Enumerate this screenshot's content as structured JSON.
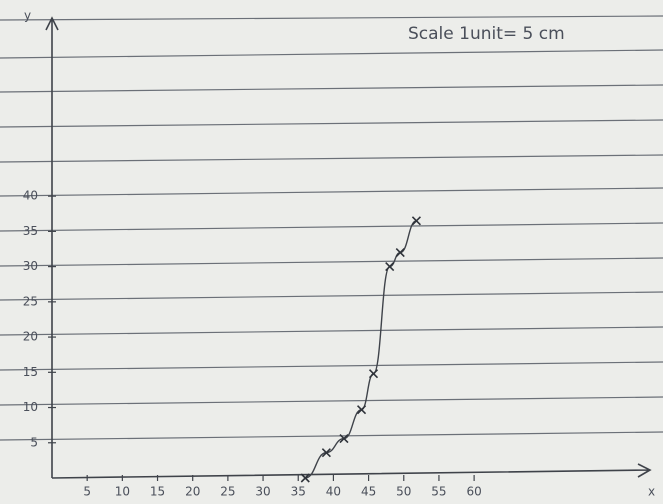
{
  "chart_data": {
    "type": "line",
    "annotation": "Scale 1unit= 5 cm",
    "x_label": "x",
    "y_label": "y",
    "x": [
      36,
      39,
      41.5,
      44,
      45.7,
      48,
      49.5,
      51.8
    ],
    "values": [
      0,
      3.6,
      5.6,
      9.7,
      14.8,
      30,
      32,
      36.5
    ],
    "color": "#3f434a",
    "xlim": [
      0,
      85
    ],
    "ylim": [
      0,
      65
    ],
    "xticks": [
      5,
      10,
      15,
      20,
      25,
      30,
      35,
      40,
      45,
      50,
      55,
      60
    ],
    "yticks": [
      5,
      10,
      15,
      20,
      25,
      30,
      35,
      40
    ]
  }
}
